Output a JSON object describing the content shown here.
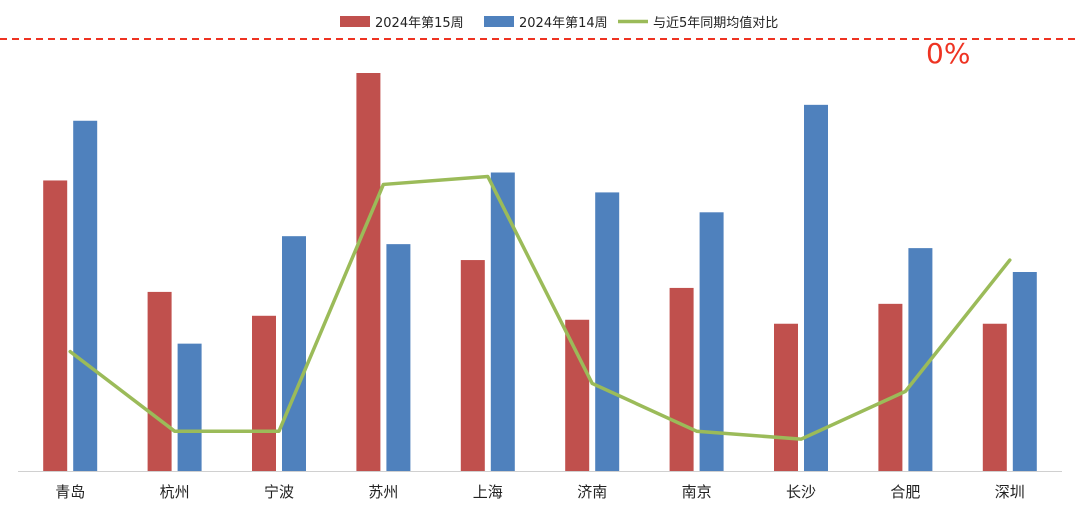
{
  "chart_data": {
    "type": "bar",
    "categories": [
      "青岛",
      "杭州",
      "宁波",
      "苏州",
      "上海",
      "济南",
      "南京",
      "长沙",
      "合肥",
      "深圳"
    ],
    "series": [
      {
        "name": "2024年第15周",
        "kind": "bar",
        "color": "#c0504d",
        "values": [
          0.73,
          0.45,
          0.39,
          1.0,
          0.53,
          0.38,
          0.46,
          0.37,
          0.42,
          0.37
        ]
      },
      {
        "name": "2024年第14周",
        "kind": "bar",
        "color": "#4f81bd",
        "values": [
          0.88,
          0.32,
          0.59,
          0.57,
          0.75,
          0.7,
          0.65,
          0.92,
          0.56,
          0.5
        ]
      },
      {
        "name": "与近5年同期均值对比",
        "kind": "line",
        "color": "#9bbb59",
        "values": [
          0.3,
          0.1,
          0.1,
          0.72,
          0.74,
          0.22,
          0.1,
          0.08,
          0.2,
          0.53
        ]
      }
    ],
    "reference_line": {
      "label": "0%",
      "color": "#ee3322",
      "style": "dashed"
    },
    "title": "",
    "xlabel": "",
    "ylabel": "",
    "legend_position": "top-center",
    "grid": false,
    "y_axis_labels_visible": false
  }
}
